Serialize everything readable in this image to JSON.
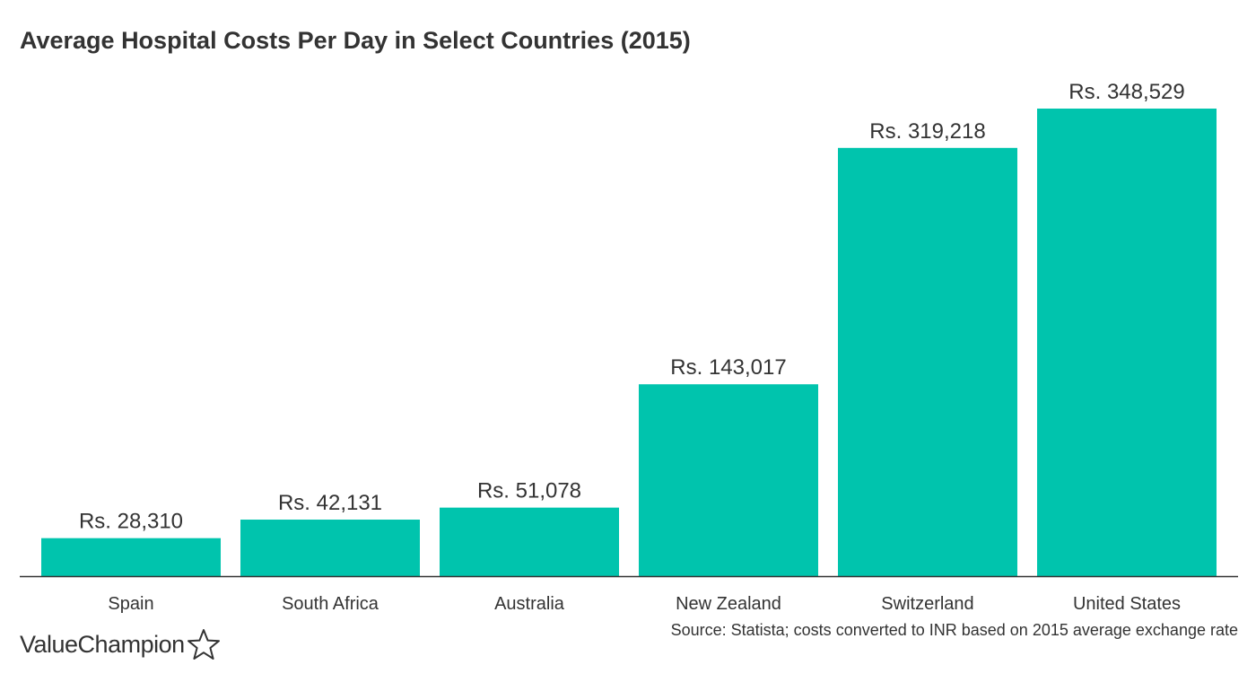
{
  "chart_data": {
    "type": "bar",
    "title": "Average Hospital Costs Per Day in Select Countries (2015)",
    "categories": [
      "Spain",
      "South Africa",
      "Australia",
      "New Zealand",
      "Switzerland",
      "United States"
    ],
    "values": [
      28310,
      42131,
      51078,
      143017,
      319218,
      348529
    ],
    "data_labels": [
      "Rs. 28,310",
      "Rs. 42,131",
      "Rs. 51,078",
      "Rs. 143,017",
      "Rs. 319,218",
      "Rs. 348,529"
    ],
    "xlabel": "",
    "ylabel": "",
    "ylim": [
      0,
      348529
    ],
    "grid": false,
    "bar_color": "#00c4ad",
    "axis_color": "#333333"
  },
  "source": "Source: Statista; costs converted to INR based on 2015 average exchange rate",
  "brand": {
    "name": "ValueChampion",
    "icon": "star-outline-icon"
  }
}
